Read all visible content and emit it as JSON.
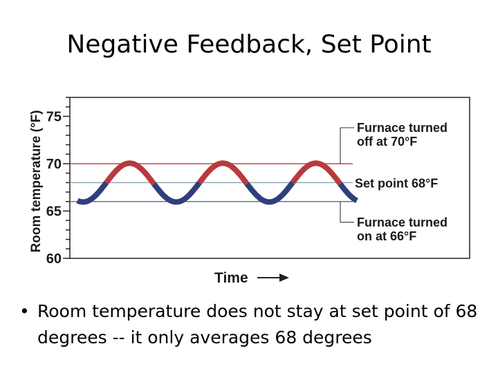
{
  "slide": {
    "title": "Negative Feedback, Set Point",
    "bullet_symbol": "•",
    "bullet_text": "Room temperature does not stay at set point of 68 degrees  --  it only averages 68 degrees"
  },
  "chart_data": {
    "type": "line",
    "ylabel": "Room temperature (°F)",
    "xlabel": "Time",
    "ylim": [
      60,
      77
    ],
    "y_ticks": [
      60,
      65,
      70,
      75
    ],
    "y_tick_labels": [
      "60",
      "65",
      "70",
      "75"
    ],
    "grid": false,
    "reference_lines": [
      {
        "value": 70,
        "label_lines": [
          "Furnace turned",
          "off at 70°F"
        ],
        "color": "#c0474a"
      },
      {
        "value": 68,
        "label_lines": [
          "Set point 68°F"
        ],
        "color": "#8fa6b4"
      },
      {
        "value": 66,
        "label_lines": [
          "Furnace turned",
          "on at 66°F"
        ],
        "color": "#5a7a8c"
      }
    ],
    "series": [
      {
        "values_description_free": true,
        "x": [
          0.0,
          0.05,
          0.1,
          0.15,
          0.2,
          0.25,
          0.3,
          0.35,
          0.4,
          0.45,
          0.5,
          0.55,
          0.6,
          0.65,
          0.7,
          0.75,
          0.8,
          0.85,
          0.9,
          0.95,
          1.0
        ],
        "values": [
          66.0,
          67.8,
          69.3,
          69.9,
          69.4,
          67.9,
          66.3,
          65.5,
          66.0,
          67.6,
          69.2,
          69.9,
          69.5,
          68.0,
          66.4,
          65.5,
          66.0,
          67.7,
          69.3,
          69.9,
          67.4
        ],
        "color_above_setpoint": "#b83a3f",
        "color_below_setpoint": "#2e3f7a"
      }
    ],
    "setpoint": 68,
    "cycles": 3
  }
}
